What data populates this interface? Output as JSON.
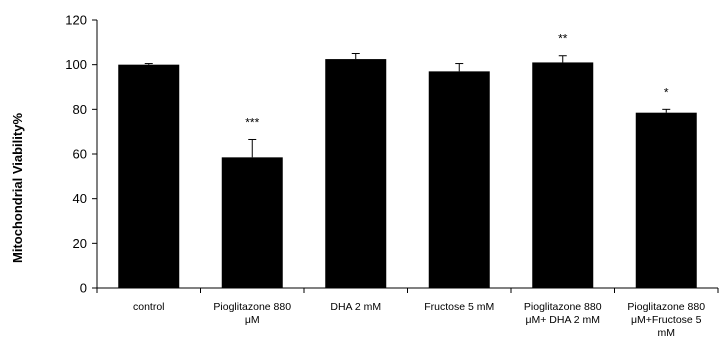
{
  "chart_data": {
    "type": "bar",
    "title": "",
    "xlabel": "",
    "ylabel": "Mitochondrial Viability%",
    "ylim": [
      0,
      120
    ],
    "yticks": [
      0,
      20,
      40,
      60,
      80,
      100,
      120
    ],
    "grid": false,
    "categories": [
      [
        "control"
      ],
      [
        "Pioglitazone 880",
        "μM"
      ],
      [
        "DHA 2 mM"
      ],
      [
        "Fructose 5 mM"
      ],
      [
        "Pioglitazone 880",
        "μM+ DHA 2 mM"
      ],
      [
        "Pioglitazone 880",
        "μM+Fructose 5",
        "mM"
      ]
    ],
    "values": [
      100,
      58.5,
      102.5,
      97,
      101,
      78.5
    ],
    "errors": [
      0.5,
      8,
      2.5,
      3.5,
      3,
      1.5
    ],
    "significance": [
      "",
      "***",
      "",
      "",
      "**",
      "*"
    ],
    "bar_color": "#000000"
  }
}
